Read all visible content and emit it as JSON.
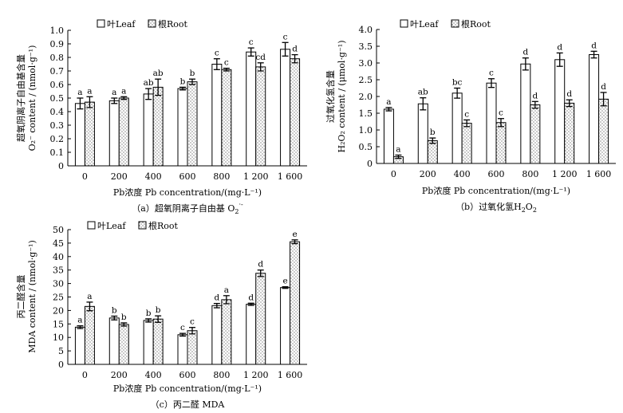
{
  "figure": {
    "legend": {
      "leaf": "叶Leaf",
      "root": "根Root"
    },
    "colors": {
      "leaf_fill": "#ffffff",
      "root_fill": "#ffffff",
      "stroke": "#000000",
      "root_dot": "#000000"
    }
  },
  "chart_data": [
    {
      "type": "bar",
      "id": "a",
      "caption_main": "（a）超氧阴离子自由基 O",
      "caption_sub": "2",
      "caption_sup": "·-",
      "ylabel_cn": "超氧阴离子自由基含量",
      "ylabel_en": "O₂⁻ content / (nmol·g⁻¹)",
      "xlabel": "Pb浓度 Pb concentration/(mg·L⁻¹)",
      "categories": [
        "0",
        "200",
        "400",
        "600",
        "800",
        "1 200",
        "1 600"
      ],
      "ylim": [
        0,
        1.0
      ],
      "yticks": [
        "0",
        "0.1",
        "0.2",
        "0.3",
        "0.4",
        "0.5",
        "0.6",
        "0.7",
        "0.8",
        "0.9",
        "1.0"
      ],
      "series": [
        {
          "name": "叶Leaf",
          "values": [
            0.46,
            0.48,
            0.53,
            0.57,
            0.75,
            0.84,
            0.86
          ],
          "errors": [
            0.04,
            0.02,
            0.04,
            0.01,
            0.04,
            0.03,
            0.05
          ],
          "labels": [
            "a",
            "a",
            "ab",
            "b",
            "c",
            "c",
            "c"
          ]
        },
        {
          "name": "根Root",
          "values": [
            0.47,
            0.5,
            0.58,
            0.62,
            0.71,
            0.73,
            0.79
          ],
          "errors": [
            0.04,
            0.01,
            0.06,
            0.02,
            0.01,
            0.03,
            0.03
          ],
          "labels": [
            "a",
            "a",
            "ab",
            "b",
            "c",
            "cd",
            "d"
          ]
        }
      ]
    },
    {
      "type": "bar",
      "id": "b",
      "caption_main": "（b）过氧化氢H",
      "caption_sub": "2",
      "caption_tail": "O",
      "caption_sub2": "2",
      "ylabel_cn": "过氧化氢含量",
      "ylabel_en": "H₂O₂ content / (μmol·g⁻¹)",
      "xlabel": "Pb浓度 Pb concentration/(mg·L⁻¹)",
      "categories": [
        "0",
        "200",
        "400",
        "600",
        "800",
        "1 200",
        "1 600"
      ],
      "ylim": [
        0,
        4.0
      ],
      "yticks": [
        "0",
        "0.5",
        "1.0",
        "1.5",
        "2.0",
        "2.5",
        "3.0",
        "3.5",
        "4.0"
      ],
      "series": [
        {
          "name": "叶Leaf",
          "values": [
            1.62,
            1.78,
            2.1,
            2.4,
            2.97,
            3.1,
            3.25
          ],
          "errors": [
            0.05,
            0.18,
            0.15,
            0.13,
            0.18,
            0.2,
            0.1
          ],
          "labels": [
            "a",
            "ab",
            "bc",
            "c",
            "d",
            "d",
            "d"
          ]
        },
        {
          "name": "根Root",
          "values": [
            0.2,
            0.68,
            1.2,
            1.22,
            1.75,
            1.8,
            1.92
          ],
          "errors": [
            0.05,
            0.08,
            0.1,
            0.12,
            0.1,
            0.1,
            0.2
          ],
          "labels": [
            "a",
            "b",
            "c",
            "c",
            "d",
            "d",
            "d"
          ]
        }
      ]
    },
    {
      "type": "bar",
      "id": "c",
      "caption_main": "（c）丙二醛 MDA",
      "ylabel_cn": "丙二醛含量",
      "ylabel_en": "MDA content / (nmol·g⁻¹)",
      "xlabel": "Pb浓度 Pb concentration/(mg·L⁻¹)",
      "categories": [
        "0",
        "200",
        "400",
        "600",
        "800",
        "1 200",
        "1 600"
      ],
      "ylim": [
        0,
        50
      ],
      "yticks": [
        "0",
        "5",
        "10",
        "15",
        "20",
        "25",
        "30",
        "35",
        "40",
        "45",
        "50"
      ],
      "series": [
        {
          "name": "叶Leaf",
          "values": [
            13.8,
            17.2,
            16.3,
            11.0,
            21.8,
            22.3,
            28.5
          ],
          "errors": [
            0.5,
            0.7,
            0.6,
            0.5,
            0.8,
            0.4,
            0.3
          ],
          "labels": [
            "a",
            "b",
            "b",
            "c",
            "d",
            "d",
            "e"
          ]
        },
        {
          "name": "根Root",
          "values": [
            21.5,
            14.8,
            16.8,
            12.5,
            24.0,
            33.8,
            45.5
          ],
          "errors": [
            1.6,
            0.6,
            1.2,
            1.2,
            1.5,
            1.2,
            0.7
          ],
          "labels": [
            "a",
            "b",
            "b",
            "c",
            "a",
            "d",
            "e"
          ]
        }
      ]
    }
  ]
}
